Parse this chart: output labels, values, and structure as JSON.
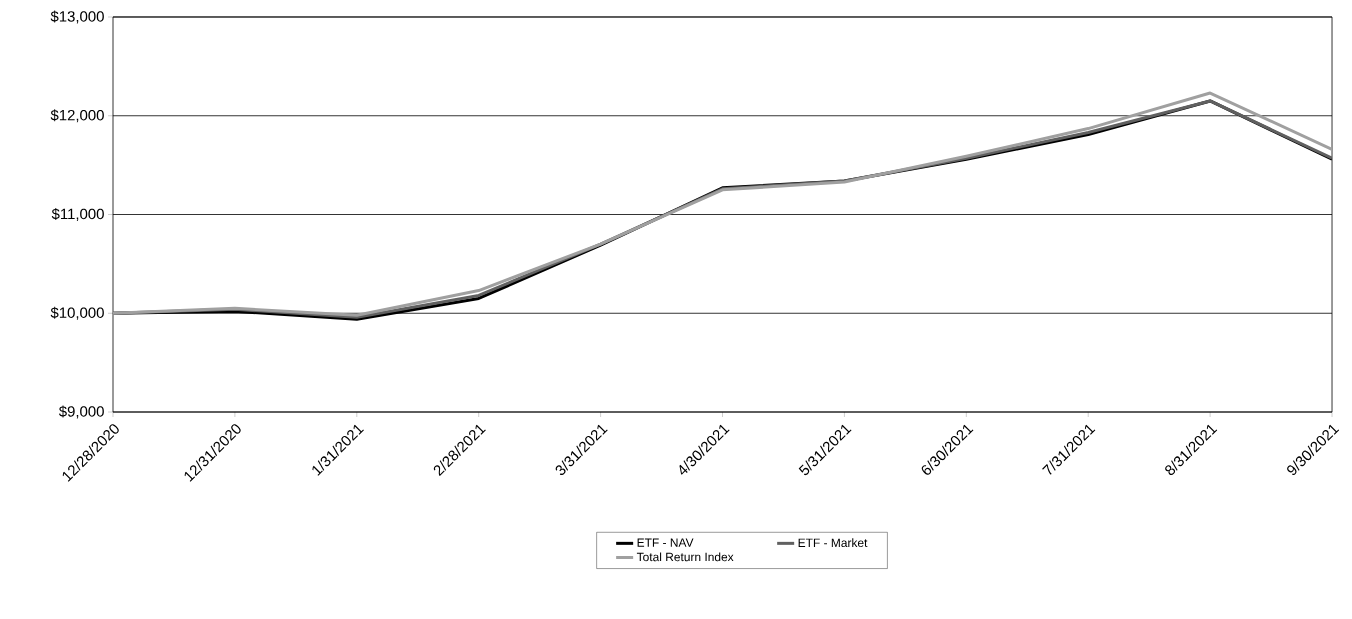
{
  "chart_data": {
    "type": "line",
    "categories": [
      "12/28/2020",
      "12/31/2020",
      "1/31/2021",
      "2/28/2021",
      "3/31/2021",
      "4/30/2021",
      "5/31/2021",
      "6/30/2021",
      "7/31/2021",
      "8/31/2021",
      "9/30/2021"
    ],
    "series": [
      {
        "name": "ETF - NAV",
        "color": "#000000",
        "values": [
          10000,
          10020,
          9940,
          10150,
          10690,
          11270,
          11340,
          11560,
          11810,
          12150,
          11560
        ]
      },
      {
        "name": "ETF - Market",
        "color": "#606060",
        "values": [
          10000,
          10040,
          9960,
          10180,
          10700,
          11260,
          11340,
          11570,
          11830,
          12150,
          11570
        ]
      },
      {
        "name": "Total Return Index",
        "color": "#a0a0a0",
        "values": [
          10000,
          10050,
          9980,
          10230,
          10700,
          11250,
          11330,
          11590,
          11870,
          12230,
          11660
        ]
      }
    ],
    "ylim": [
      9000,
      13000
    ],
    "yticks": [
      {
        "value": 9000,
        "label": "$9,000"
      },
      {
        "value": 10000,
        "label": "$10,000"
      },
      {
        "value": 11000,
        "label": "$11,000"
      },
      {
        "value": 12000,
        "label": "$12,000"
      },
      {
        "value": 13000,
        "label": "$13,000"
      }
    ],
    "grid": "y",
    "legend": "bottom",
    "marker": "none",
    "line_style": "solid"
  }
}
